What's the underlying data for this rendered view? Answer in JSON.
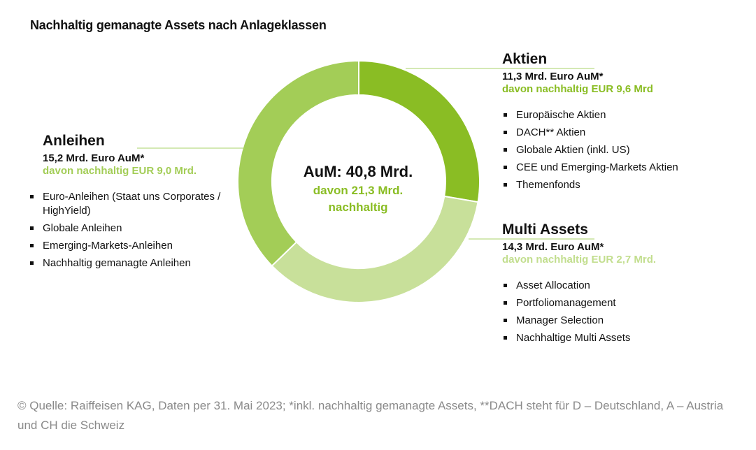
{
  "title": "Nachhaltig gemanagte Assets nach Anlageklassen",
  "center": {
    "main": "AuM: 40,8 Mrd.",
    "sub_line1": "davon 21,3 Mrd.",
    "sub_line2": "nachhaltig"
  },
  "colors": {
    "aktien": "#8abd24",
    "anleihen": "#a3cd57",
    "multi_assets": "#c8e09a",
    "sust_text_dark": "#8abd24",
    "sust_text_light": "#c2de8e",
    "footer_text": "#8a8a8a"
  },
  "chart_data": {
    "type": "pie",
    "title": "Nachhaltig gemanagte Assets nach Anlageklassen",
    "donut": true,
    "total": 40.8,
    "categories": [
      "Aktien",
      "Multi Assets",
      "Anleihen"
    ],
    "values": [
      11.3,
      14.3,
      15.2
    ],
    "sustainable_values": [
      9.6,
      2.7,
      9.0
    ]
  },
  "segments": {
    "aktien": {
      "title": "Aktien",
      "aum": "11,3 Mrd. Euro AuM*",
      "sustainable": "davon nachhaltig EUR 9,6 Mrd",
      "bullets": [
        "Europäische Aktien",
        "DACH** Aktien",
        "Globale Aktien (inkl. US)",
        "CEE und Emerging-Markets Aktien",
        "Themenfonds"
      ]
    },
    "multi_assets": {
      "title": "Multi Assets",
      "aum": "14,3 Mrd. Euro AuM*",
      "sustainable": "davon nachhaltig EUR 2,7 Mrd.",
      "bullets": [
        "Asset Allocation",
        "Portfoliomanagement",
        "Manager Selection",
        "Nachhaltige Multi Assets"
      ]
    },
    "anleihen": {
      "title": "Anleihen",
      "aum": "15,2 Mrd. Euro AuM*",
      "sustainable": "davon nachhaltig EUR 9,0 Mrd.",
      "bullets": [
        "Euro-Anleihen (Staat uns Corporates / HighYield)",
        "Globale Anleihen",
        "Emerging-Markets-Anleihen",
        "Nachhaltig gemanagte Anleihen"
      ]
    }
  },
  "footer": "© Quelle: Raiffeisen KAG, Daten per 31. Mai 2023; *inkl. nachhaltig gemanagte Assets, **DACH steht für D – Deutschland, A – Austria und CH die Schweiz"
}
